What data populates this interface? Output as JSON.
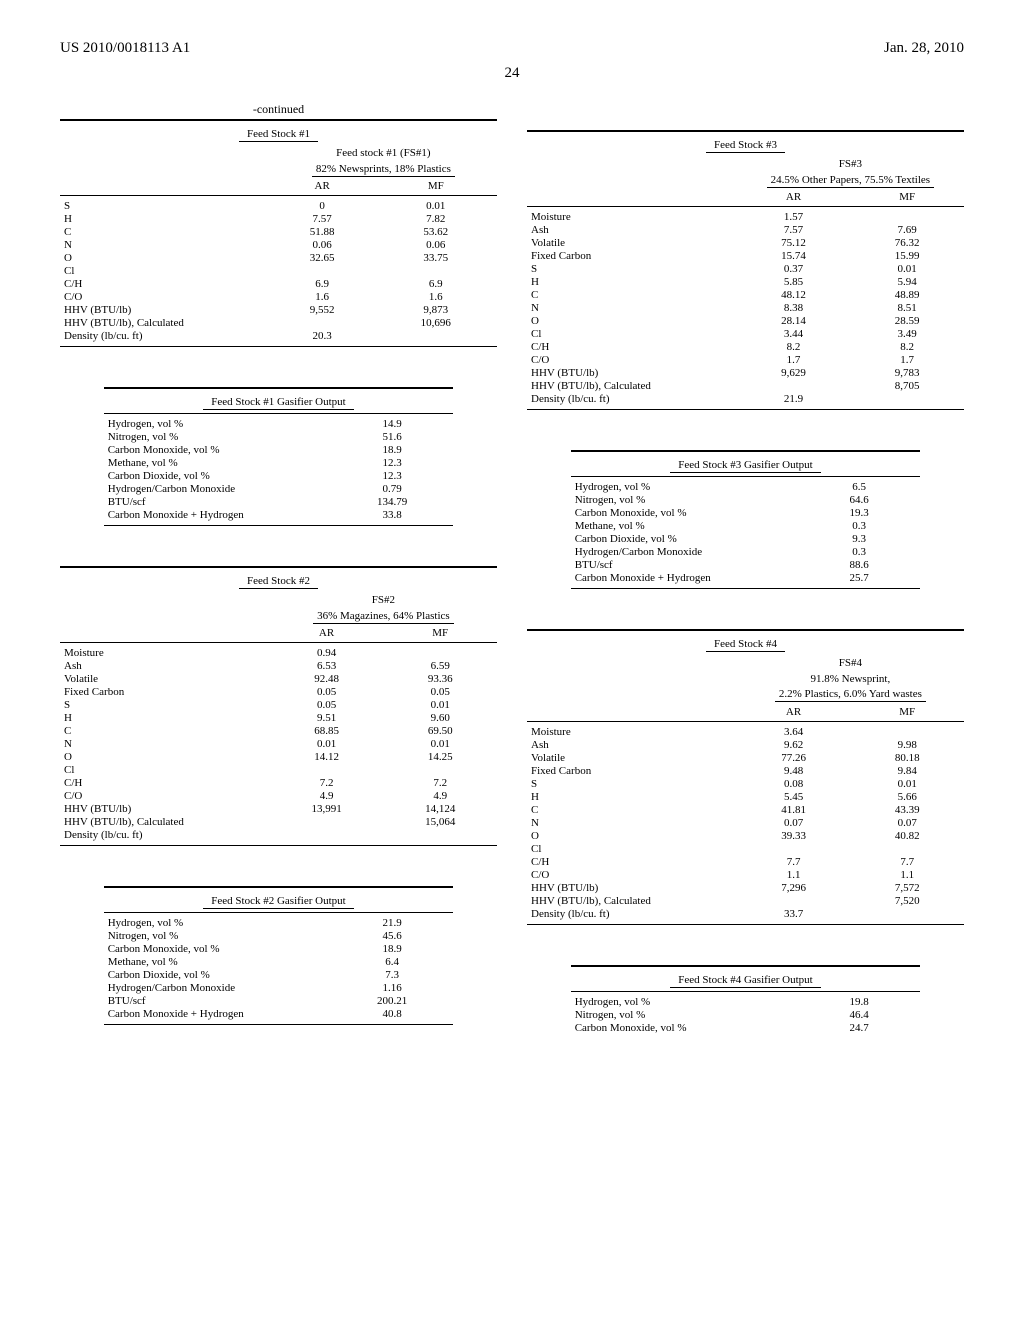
{
  "header": {
    "left": "US 2010/0018113 A1",
    "right": "Jan. 28, 2010"
  },
  "page_num": "24",
  "continued_label": "-continued",
  "col_hdrs": {
    "ar": "AR",
    "mf": "MF"
  },
  "fs1": {
    "title": "Feed Stock #1",
    "subtitle1": "Feed stock #1 (FS#1)",
    "subtitle2": "82% Newsprints, 18% Plastics",
    "rows": [
      {
        "l": "S",
        "ar": "0",
        "mf": "0.01"
      },
      {
        "l": "H",
        "ar": "7.57",
        "mf": "7.82"
      },
      {
        "l": "C",
        "ar": "51.88",
        "mf": "53.62"
      },
      {
        "l": "N",
        "ar": "0.06",
        "mf": "0.06"
      },
      {
        "l": "O",
        "ar": "32.65",
        "mf": "33.75"
      },
      {
        "l": "Cl",
        "ar": "",
        "mf": ""
      },
      {
        "l": "C/H",
        "ar": "6.9",
        "mf": "6.9"
      },
      {
        "l": "C/O",
        "ar": "1.6",
        "mf": "1.6"
      },
      {
        "l": "HHV (BTU/lb)",
        "ar": "9,552",
        "mf": "9,873"
      },
      {
        "l": "HHV (BTU/lb), Calculated",
        "ar": "",
        "mf": "10,696"
      },
      {
        "l": "Density (lb/cu. ft)",
        "ar": "20.3",
        "mf": ""
      }
    ]
  },
  "fs1g": {
    "title": "Feed Stock #1 Gasifier Output",
    "rows": [
      {
        "l": "Hydrogen, vol %",
        "v": "14.9"
      },
      {
        "l": "Nitrogen, vol %",
        "v": "51.6"
      },
      {
        "l": "Carbon Monoxide, vol %",
        "v": "18.9"
      },
      {
        "l": "Methane, vol %",
        "v": "12.3"
      },
      {
        "l": "Carbon Dioxide, vol %",
        "v": "12.3"
      },
      {
        "l": "Hydrogen/Carbon Monoxide",
        "v": "0.79"
      },
      {
        "l": "BTU/scf",
        "v": "134.79"
      },
      {
        "l": "Carbon Monoxide + Hydrogen",
        "v": "33.8"
      }
    ]
  },
  "fs2": {
    "title": "Feed Stock #2",
    "subtitle1": "FS#2",
    "subtitle2": "36% Magazines, 64% Plastics",
    "rows": [
      {
        "l": "Moisture",
        "ar": "0.94",
        "mf": ""
      },
      {
        "l": "Ash",
        "ar": "6.53",
        "mf": "6.59"
      },
      {
        "l": "Volatile",
        "ar": "92.48",
        "mf": "93.36"
      },
      {
        "l": "Fixed Carbon",
        "ar": "0.05",
        "mf": "0.05"
      },
      {
        "l": "S",
        "ar": "0.05",
        "mf": "0.01"
      },
      {
        "l": "H",
        "ar": "9.51",
        "mf": "9.60"
      },
      {
        "l": "C",
        "ar": "68.85",
        "mf": "69.50"
      },
      {
        "l": "N",
        "ar": "0.01",
        "mf": "0.01"
      },
      {
        "l": "O",
        "ar": "14.12",
        "mf": "14.25"
      },
      {
        "l": "Cl",
        "ar": "",
        "mf": ""
      },
      {
        "l": "C/H",
        "ar": "7.2",
        "mf": "7.2"
      },
      {
        "l": "C/O",
        "ar": "4.9",
        "mf": "4.9"
      },
      {
        "l": "HHV (BTU/lb)",
        "ar": "13,991",
        "mf": "14,124"
      },
      {
        "l": "HHV (BTU/lb), Calculated",
        "ar": "",
        "mf": "15,064"
      },
      {
        "l": "Density (lb/cu. ft)",
        "ar": "",
        "mf": ""
      }
    ]
  },
  "fs2g": {
    "title": "Feed Stock #2 Gasifier Output",
    "rows": [
      {
        "l": "Hydrogen, vol %",
        "v": "21.9"
      },
      {
        "l": "Nitrogen, vol %",
        "v": "45.6"
      },
      {
        "l": "Carbon Monoxide, vol %",
        "v": "18.9"
      },
      {
        "l": "Methane, vol %",
        "v": "6.4"
      },
      {
        "l": "Carbon Dioxide, vol %",
        "v": "7.3"
      },
      {
        "l": "Hydrogen/Carbon Monoxide",
        "v": "1.16"
      },
      {
        "l": "BTU/scf",
        "v": "200.21"
      },
      {
        "l": "Carbon Monoxide + Hydrogen",
        "v": "40.8"
      }
    ]
  },
  "fs3": {
    "title": "Feed Stock #3",
    "subtitle1": "FS#3",
    "subtitle2": "24.5% Other Papers, 75.5% Textiles",
    "rows": [
      {
        "l": "Moisture",
        "ar": "1.57",
        "mf": ""
      },
      {
        "l": "Ash",
        "ar": "7.57",
        "mf": "7.69"
      },
      {
        "l": "Volatile",
        "ar": "75.12",
        "mf": "76.32"
      },
      {
        "l": "Fixed Carbon",
        "ar": "15.74",
        "mf": "15.99"
      },
      {
        "l": "S",
        "ar": "0.37",
        "mf": "0.01"
      },
      {
        "l": "H",
        "ar": "5.85",
        "mf": "5.94"
      },
      {
        "l": "C",
        "ar": "48.12",
        "mf": "48.89"
      },
      {
        "l": "N",
        "ar": "8.38",
        "mf": "8.51"
      },
      {
        "l": "O",
        "ar": "28.14",
        "mf": "28.59"
      },
      {
        "l": "Cl",
        "ar": "3.44",
        "mf": "3.49"
      },
      {
        "l": "C/H",
        "ar": "8.2",
        "mf": "8.2"
      },
      {
        "l": "C/O",
        "ar": "1.7",
        "mf": "1.7"
      },
      {
        "l": "HHV (BTU/lb)",
        "ar": "9,629",
        "mf": "9,783"
      },
      {
        "l": "HHV (BTU/lb), Calculated",
        "ar": "",
        "mf": "8,705"
      },
      {
        "l": "Density (lb/cu. ft)",
        "ar": "21.9",
        "mf": ""
      }
    ]
  },
  "fs3g": {
    "title": "Feed Stock #3 Gasifier Output",
    "rows": [
      {
        "l": "Hydrogen, vol %",
        "v": "6.5"
      },
      {
        "l": "Nitrogen, vol %",
        "v": "64.6"
      },
      {
        "l": "Carbon Monoxide, vol %",
        "v": "19.3"
      },
      {
        "l": "Methane, vol %",
        "v": "0.3"
      },
      {
        "l": "Carbon Dioxide, vol %",
        "v": "9.3"
      },
      {
        "l": "Hydrogen/Carbon Monoxide",
        "v": "0.3"
      },
      {
        "l": "BTU/scf",
        "v": "88.6"
      },
      {
        "l": "Carbon Monoxide + Hydrogen",
        "v": "25.7"
      }
    ]
  },
  "fs4": {
    "title": "Feed Stock #4",
    "subtitle1": "FS#4",
    "subtitle2a": "91.8% Newsprint,",
    "subtitle2b": "2.2% Plastics, 6.0% Yard wastes",
    "rows": [
      {
        "l": "Moisture",
        "ar": "3.64",
        "mf": ""
      },
      {
        "l": "Ash",
        "ar": "9.62",
        "mf": "9.98"
      },
      {
        "l": "Volatile",
        "ar": "77.26",
        "mf": "80.18"
      },
      {
        "l": "Fixed Carbon",
        "ar": "9.48",
        "mf": "9.84"
      },
      {
        "l": "S",
        "ar": "0.08",
        "mf": "0.01"
      },
      {
        "l": "H",
        "ar": "5.45",
        "mf": "5.66"
      },
      {
        "l": "C",
        "ar": "41.81",
        "mf": "43.39"
      },
      {
        "l": "N",
        "ar": "0.07",
        "mf": "0.07"
      },
      {
        "l": "O",
        "ar": "39.33",
        "mf": "40.82"
      },
      {
        "l": "Cl",
        "ar": "",
        "mf": ""
      },
      {
        "l": "C/H",
        "ar": "7.7",
        "mf": "7.7"
      },
      {
        "l": "C/O",
        "ar": "1.1",
        "mf": "1.1"
      },
      {
        "l": "HHV (BTU/lb)",
        "ar": "7,296",
        "mf": "7,572"
      },
      {
        "l": "HHV (BTU/lb), Calculated",
        "ar": "",
        "mf": "7,520"
      },
      {
        "l": "Density (lb/cu. ft)",
        "ar": "33.7",
        "mf": ""
      }
    ]
  },
  "fs4g": {
    "title": "Feed Stock #4 Gasifier Output",
    "rows": [
      {
        "l": "Hydrogen, vol %",
        "v": "19.8"
      },
      {
        "l": "Nitrogen, vol %",
        "v": "46.4"
      },
      {
        "l": "Carbon Monoxide, vol %",
        "v": "24.7"
      }
    ]
  }
}
